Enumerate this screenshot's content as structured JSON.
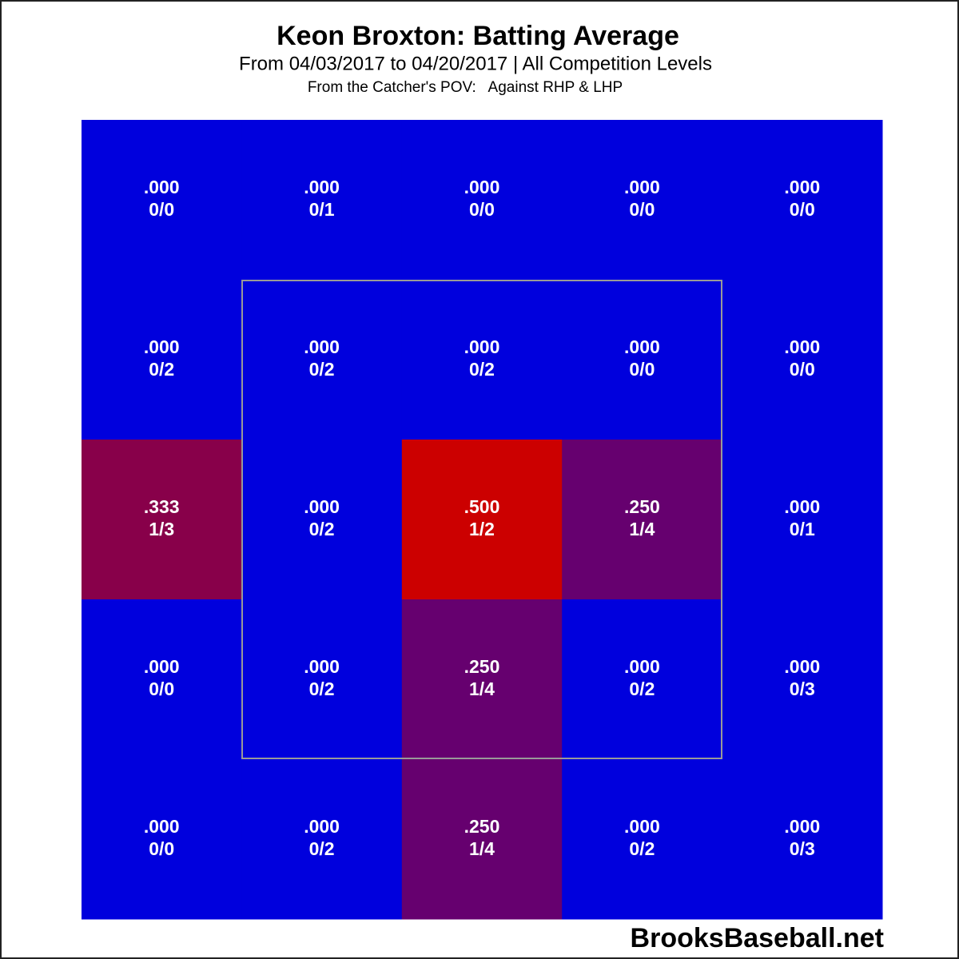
{
  "chart_data": {
    "type": "heatmap",
    "title": "Keon Broxton: Batting Average",
    "subtitle": "From 04/03/2017 to 04/20/2017 | All Competition Levels",
    "note": "From the Catcher's POV:   Against RHP & LHP",
    "source": "BrooksBaseball.net",
    "values": [
      [
        0,
        0,
        0,
        0,
        0
      ],
      [
        0,
        0,
        0,
        0,
        0
      ],
      [
        0.333,
        0,
        0.5,
        0.25,
        0
      ],
      [
        0,
        0,
        0.25,
        0,
        0
      ],
      [
        0,
        0,
        0.25,
        0,
        0
      ]
    ],
    "value_labels": [
      [
        ".000",
        ".000",
        ".000",
        ".000",
        ".000"
      ],
      [
        ".000",
        ".000",
        ".000",
        ".000",
        ".000"
      ],
      [
        ".333",
        ".000",
        ".500",
        ".250",
        ".000"
      ],
      [
        ".000",
        ".000",
        ".250",
        ".000",
        ".000"
      ],
      [
        ".000",
        ".000",
        ".250",
        ".000",
        ".000"
      ]
    ],
    "counts": [
      [
        "0/0",
        "0/1",
        "0/0",
        "0/0",
        "0/0"
      ],
      [
        "0/2",
        "0/2",
        "0/2",
        "0/0",
        "0/0"
      ],
      [
        "1/3",
        "0/2",
        "1/2",
        "1/4",
        "0/1"
      ],
      [
        "0/0",
        "0/2",
        "1/4",
        "0/2",
        "0/3"
      ],
      [
        "0/0",
        "0/2",
        "1/4",
        "0/2",
        "0/3"
      ]
    ],
    "clim": [
      0,
      0.5
    ],
    "colors": {
      "low": "#0000dd",
      "high": "#cc0000"
    }
  }
}
